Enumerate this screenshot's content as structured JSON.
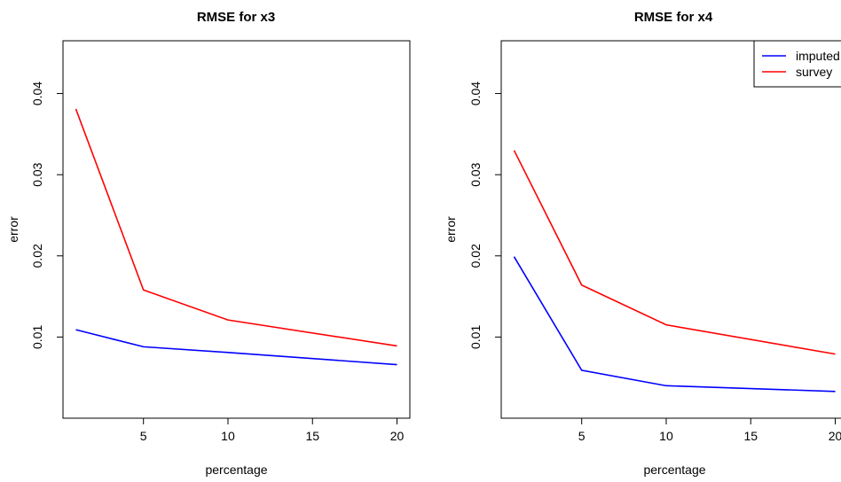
{
  "chart_data": [
    {
      "type": "line",
      "title": "RMSE for x3",
      "xlabel": "percentage",
      "ylabel": "error",
      "x": [
        1,
        5,
        10,
        20
      ],
      "xticks": [
        5,
        10,
        15,
        20
      ],
      "yticks": [
        0.01,
        0.02,
        0.03,
        0.04
      ],
      "ytick_labels": [
        "0.01",
        "0.02",
        "0.03",
        "0.04"
      ],
      "xlim": [
        0.24,
        20.76
      ],
      "ylim": [
        0,
        0.0465
      ],
      "grid": false,
      "series": [
        {
          "name": "imputed",
          "color": "#0000ff",
          "values": [
            0.0109,
            0.0088,
            0.0081,
            0.0066
          ]
        },
        {
          "name": "survey",
          "color": "#ff0000",
          "values": [
            0.0381,
            0.0158,
            0.0121,
            0.0089
          ]
        }
      ]
    },
    {
      "type": "line",
      "title": "RMSE for x4",
      "xlabel": "percentage",
      "ylabel": "error",
      "x": [
        1,
        5,
        10,
        20
      ],
      "xticks": [
        5,
        10,
        15,
        20
      ],
      "yticks": [
        0.01,
        0.02,
        0.03,
        0.04
      ],
      "ytick_labels": [
        "0.01",
        "0.02",
        "0.03",
        "0.04"
      ],
      "xlim": [
        0.24,
        20.76
      ],
      "ylim": [
        0,
        0.0465
      ],
      "grid": false,
      "legend": {
        "placement": "top-right",
        "entries": [
          "imputed",
          "survey"
        ]
      },
      "series": [
        {
          "name": "imputed",
          "color": "#0000ff",
          "values": [
            0.0199,
            0.0059,
            0.004,
            0.0033
          ]
        },
        {
          "name": "survey",
          "color": "#ff0000",
          "values": [
            0.033,
            0.0164,
            0.0115,
            0.0079
          ]
        }
      ]
    }
  ]
}
